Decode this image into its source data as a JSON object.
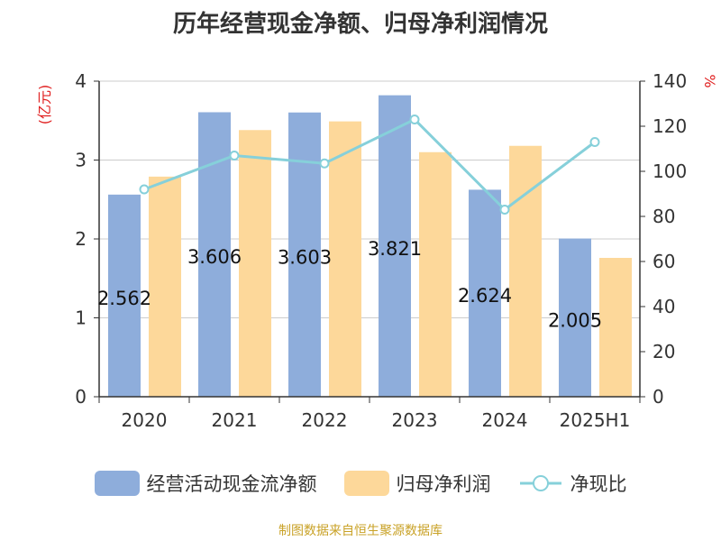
{
  "chart_data": {
    "type": "bar",
    "title": "历年经营现金净额、归母净利润情况",
    "categories": [
      "2020",
      "2021",
      "2022",
      "2023",
      "2024",
      "2025H1"
    ],
    "y_left": {
      "unit": "(亿元)",
      "ylim": [
        0,
        4
      ],
      "ticks": [
        "0",
        "1",
        "2",
        "3",
        "4"
      ]
    },
    "y_right": {
      "unit": "%",
      "ylim": [
        0,
        140
      ],
      "ticks": [
        "0",
        "20",
        "40",
        "60",
        "80",
        "100",
        "120",
        "140"
      ]
    },
    "series": [
      {
        "name": "经营活动现金流净额",
        "type": "bar",
        "axis": "left",
        "color": "#8eaddb",
        "values": [
          2.562,
          3.606,
          3.603,
          3.821,
          2.624,
          2.005
        ],
        "labels": [
          "2.562",
          "3.606",
          "3.603",
          "3.821",
          "2.624",
          "2.005"
        ]
      },
      {
        "name": "归母净利润",
        "type": "bar",
        "axis": "left",
        "color": "#fdd89a",
        "values": [
          2.79,
          3.38,
          3.49,
          3.1,
          3.18,
          1.76
        ]
      },
      {
        "name": "净现比",
        "type": "line",
        "axis": "right",
        "color": "#86d0da",
        "values": [
          92,
          107,
          103.5,
          123,
          83,
          113
        ]
      }
    ],
    "grid": true,
    "legend": "bottom"
  },
  "source": "制图数据来自恒生聚源数据库"
}
